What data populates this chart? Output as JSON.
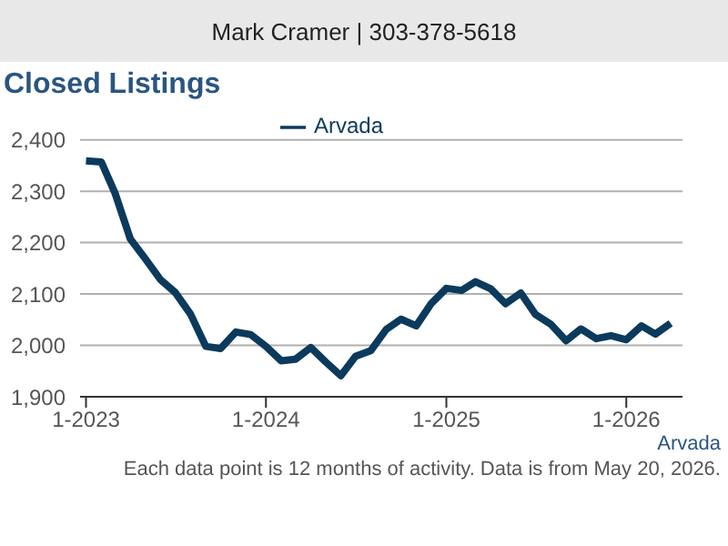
{
  "chart_data": {
    "type": "line",
    "title": "Closed Listings",
    "annotations": [
      "Mark Cramer | 303-378-5618",
      "Arvada",
      "Each data point is 12 months of activity. Data is from May 20, 2026."
    ],
    "x": [
      "2023-01",
      "2023-02",
      "2023-03",
      "2023-04",
      "2023-05",
      "2023-06",
      "2023-07",
      "2023-08",
      "2023-09",
      "2023-10",
      "2023-11",
      "2023-12",
      "2024-01",
      "2024-02",
      "2024-03",
      "2024-04",
      "2024-05",
      "2024-06",
      "2024-07",
      "2024-08",
      "2024-09",
      "2024-10",
      "2024-11",
      "2024-12",
      "2025-01",
      "2025-02",
      "2025-03",
      "2025-04",
      "2025-05",
      "2025-06",
      "2025-07",
      "2025-08",
      "2025-09",
      "2025-10",
      "2025-11",
      "2025-12",
      "2026-01",
      "2026-02",
      "2026-03",
      "2026-04"
    ],
    "series": [
      {
        "name": "Arvada",
        "color": "#0b3a5c",
        "values": [
          2359,
          2357,
          2296,
          2207,
          2169,
          2128,
          2103,
          2061,
          1998,
          1994,
          2026,
          2021,
          1998,
          1970,
          1973,
          1996,
          1968,
          1941,
          1979,
          1990,
          2031,
          2051,
          2038,
          2081,
          2111,
          2107,
          2124,
          2110,
          2081,
          2102,
          2060,
          2041,
          2009,
          2032,
          2013,
          2019,
          2011,
          2038,
          2022,
          2043
        ]
      }
    ],
    "xlim": [
      "2022-12-20",
      "2026-04-25"
    ],
    "xticks": [
      {
        "value": "2023-01",
        "label": "1-2023"
      },
      {
        "value": "2024-01",
        "label": "1-2024"
      },
      {
        "value": "2025-01",
        "label": "1-2025"
      },
      {
        "value": "2026-01",
        "label": "1-2026"
      }
    ],
    "ylim": [
      1900,
      2400
    ],
    "yticks": [
      {
        "value": 1900,
        "label": "1,900"
      },
      {
        "value": 2000,
        "label": "2,000"
      },
      {
        "value": 2100,
        "label": "2,100"
      },
      {
        "value": 2200,
        "label": "2,200"
      },
      {
        "value": 2300,
        "label": "2,300"
      },
      {
        "value": 2400,
        "label": "2,400"
      }
    ],
    "grid": "y",
    "legend": "top",
    "marker": "none",
    "line_style": "solid"
  }
}
